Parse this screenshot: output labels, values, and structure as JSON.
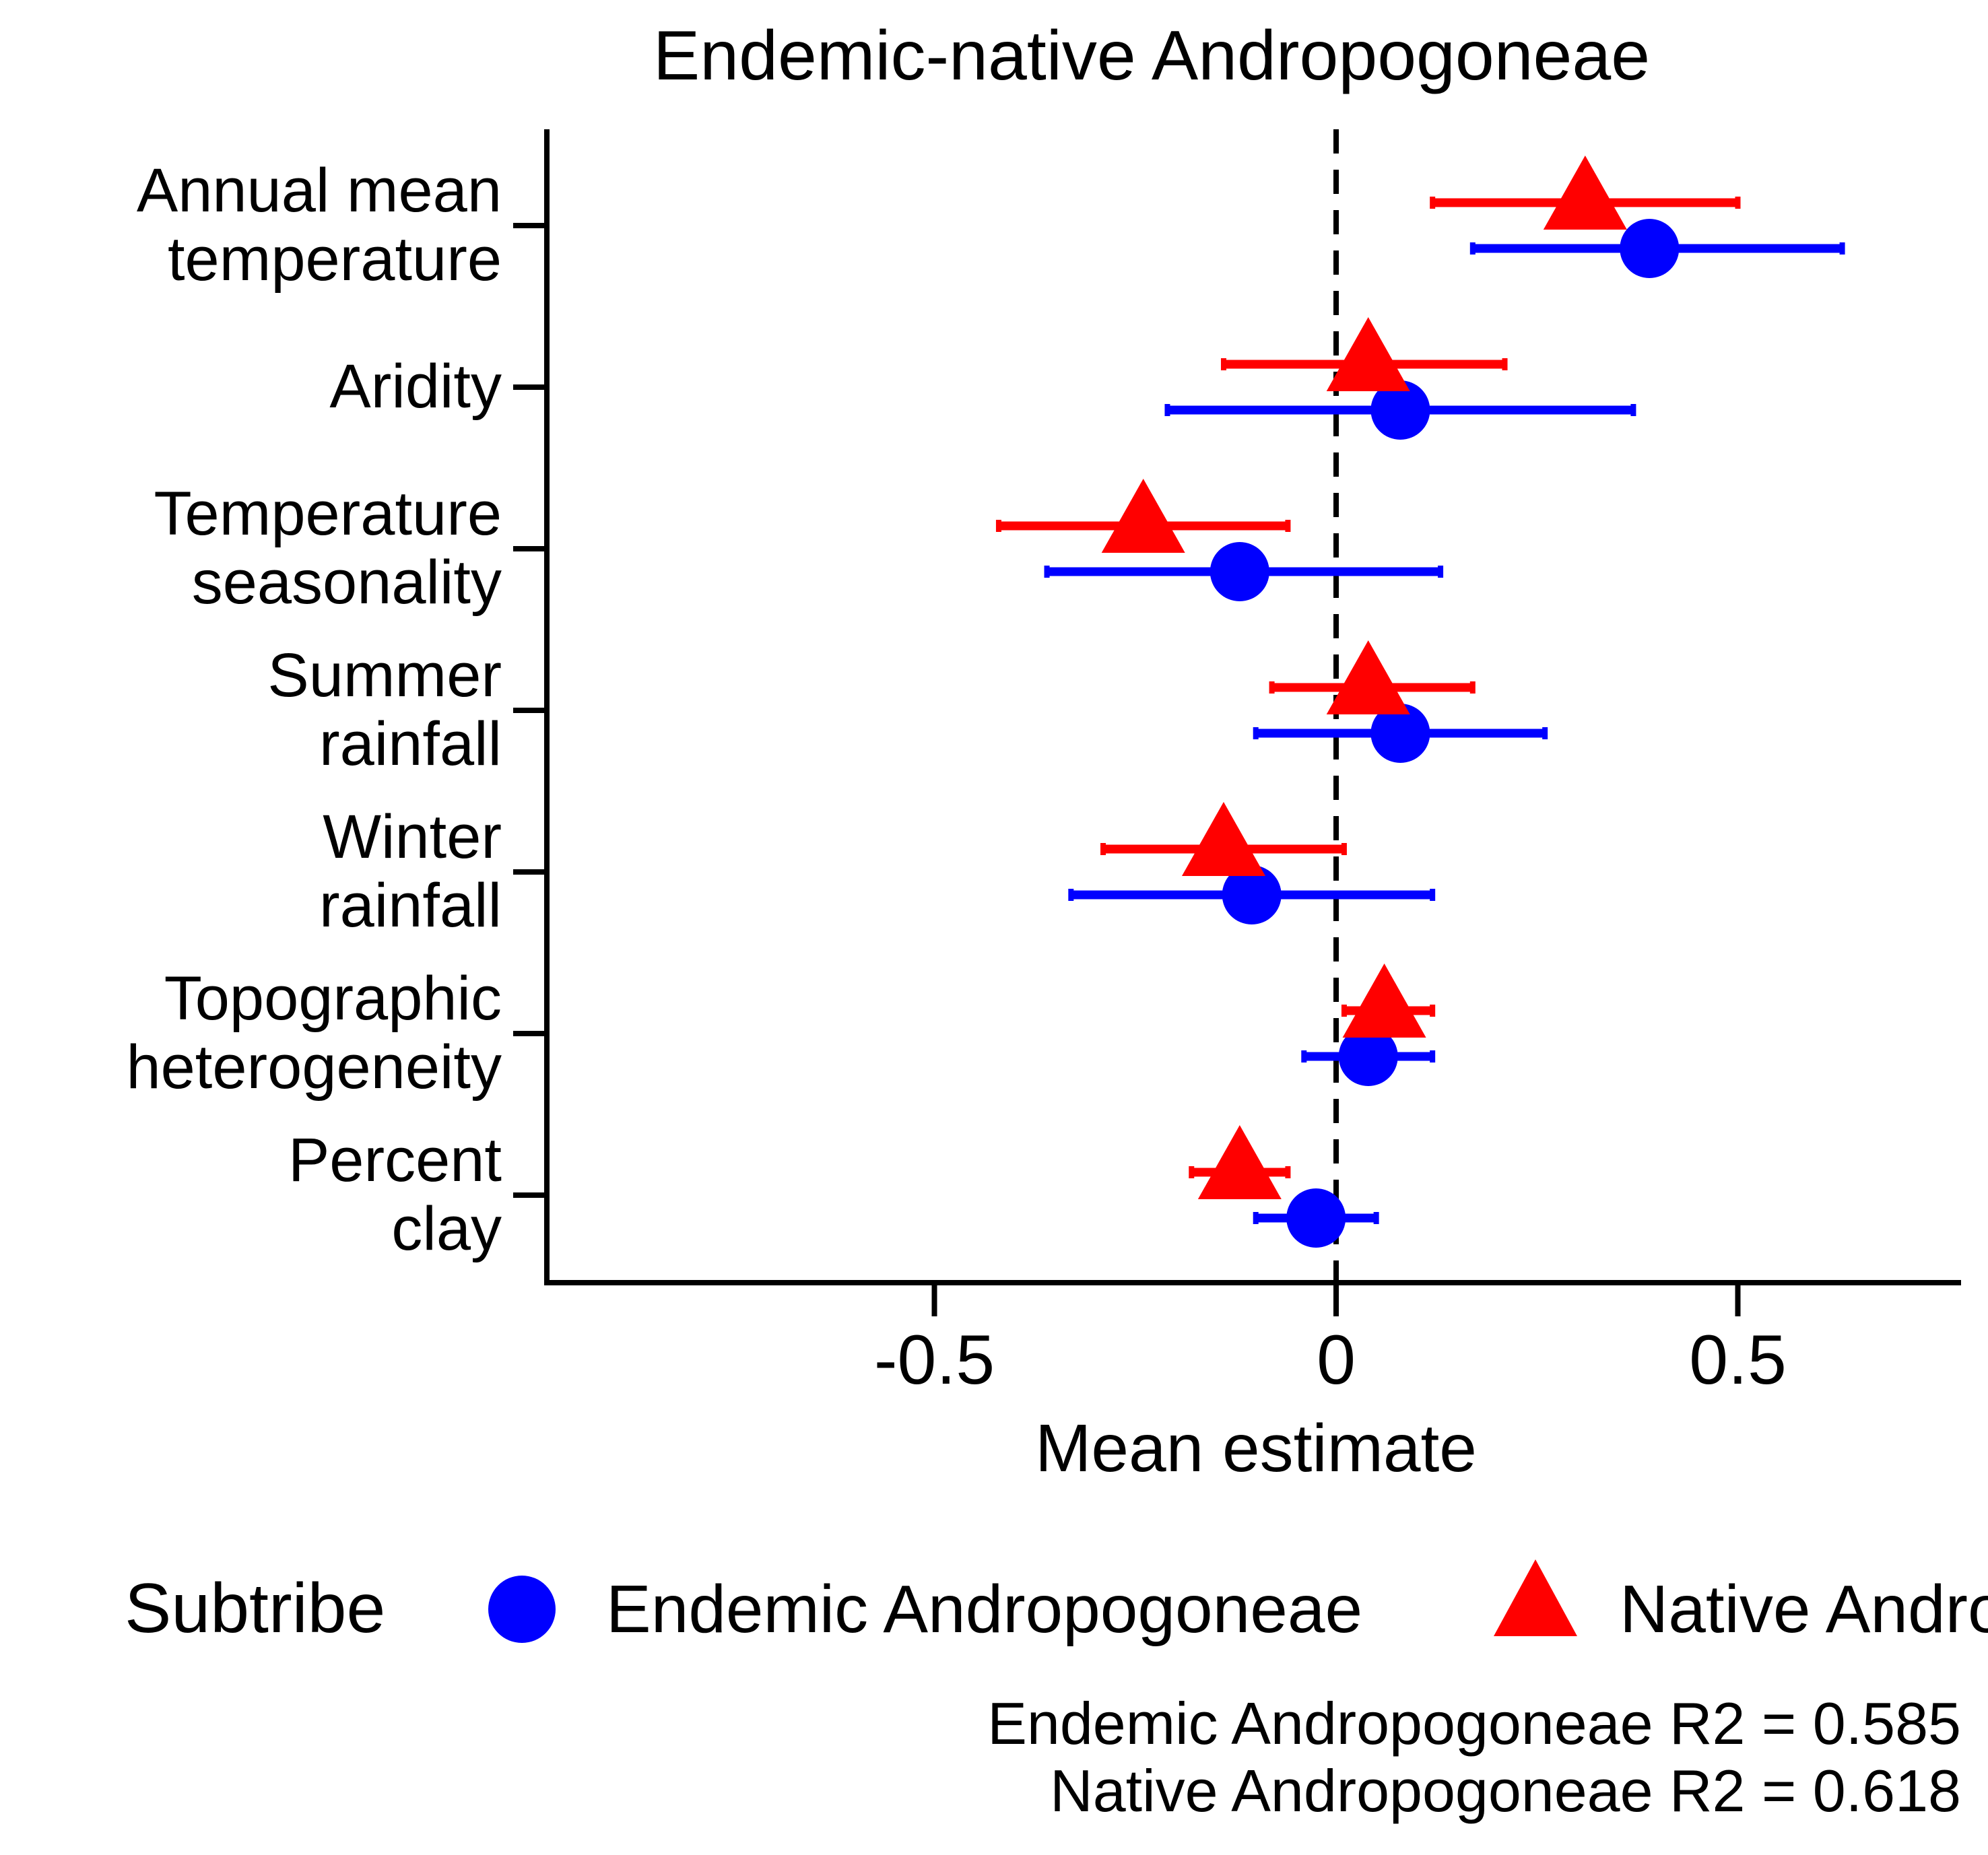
{
  "chart_data": {
    "type": "scatter",
    "title": "Endemic-native Andropogoneae",
    "xlabel": "Mean estimate",
    "ylabel": "",
    "xlim": [
      -0.98,
      0.78
    ],
    "x_ticks": [
      -0.5,
      0,
      0.5
    ],
    "x_tick_labels": [
      "-0.5",
      "0",
      "0.5"
    ],
    "reference_line": {
      "x": 0,
      "style": "dashed"
    },
    "grid": false,
    "categories": [
      [
        "Annual mean",
        "temperature"
      ],
      [
        "Aridity"
      ],
      [
        "Temperature",
        "seasonality"
      ],
      [
        "Summer",
        "rainfall"
      ],
      [
        "Winter",
        "rainfall"
      ],
      [
        "Topographic",
        "heterogeneity"
      ],
      [
        "Percent",
        "clay"
      ]
    ],
    "series": [
      {
        "name": "Endemic Andropogoneae",
        "marker": "circle",
        "color": "#0000ff",
        "points": [
          {
            "estimate": 0.39,
            "lower": 0.17,
            "upper": 0.63
          },
          {
            "estimate": 0.08,
            "lower": -0.21,
            "upper": 0.37
          },
          {
            "estimate": -0.12,
            "lower": -0.36,
            "upper": 0.13
          },
          {
            "estimate": 0.08,
            "lower": -0.1,
            "upper": 0.26
          },
          {
            "estimate": -0.105,
            "lower": -0.33,
            "upper": 0.12
          },
          {
            "estimate": 0.04,
            "lower": -0.04,
            "upper": 0.12
          },
          {
            "estimate": -0.025,
            "lower": -0.1,
            "upper": 0.05
          }
        ]
      },
      {
        "name": "Native Andropogoneae",
        "marker": "triangle",
        "color": "#ff0000",
        "points": [
          {
            "estimate": 0.31,
            "lower": 0.12,
            "upper": 0.5
          },
          {
            "estimate": 0.04,
            "lower": -0.14,
            "upper": 0.21
          },
          {
            "estimate": -0.24,
            "lower": -0.42,
            "upper": -0.06
          },
          {
            "estimate": 0.04,
            "lower": -0.08,
            "upper": 0.17
          },
          {
            "estimate": -0.14,
            "lower": -0.29,
            "upper": 0.01
          },
          {
            "estimate": 0.06,
            "lower": 0.01,
            "upper": 0.12
          },
          {
            "estimate": -0.12,
            "lower": -0.18,
            "upper": -0.06
          }
        ]
      }
    ],
    "legend": {
      "title": "Subtribe",
      "position": "bottom",
      "items": [
        "Endemic Andropogoneae",
        "Native Andropogoneae"
      ]
    },
    "annotations": [
      "Endemic Andropogoneae R2 = 0.585",
      "Native Andropogoneae R2 = 0.618"
    ]
  }
}
